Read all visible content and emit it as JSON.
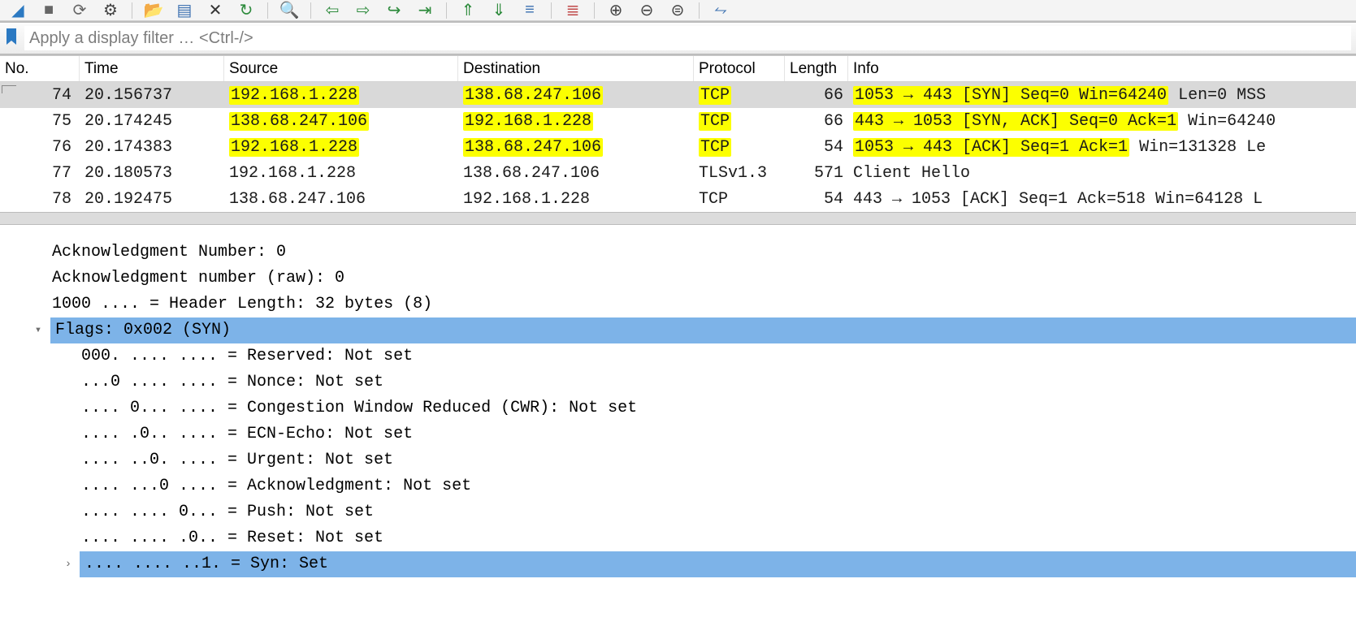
{
  "toolbar": {
    "buttons": [
      {
        "name": "shark-fin-icon",
        "glyph": "◢",
        "color": "#2b79c2"
      },
      {
        "name": "stop-icon",
        "glyph": "■",
        "color": "#666"
      },
      {
        "name": "restart-icon",
        "glyph": "⟳",
        "color": "#666"
      },
      {
        "name": "options-icon",
        "glyph": "⚙",
        "color": "#444"
      },
      {
        "name": "sep"
      },
      {
        "name": "open-icon",
        "glyph": "📂",
        "color": "#caa62a"
      },
      {
        "name": "save-icon",
        "glyph": "▤",
        "color": "#3a6fb0"
      },
      {
        "name": "close-icon",
        "glyph": "✕",
        "color": "#333"
      },
      {
        "name": "reload-icon",
        "glyph": "↻",
        "color": "#2e8b3d"
      },
      {
        "name": "sep"
      },
      {
        "name": "find-icon",
        "glyph": "🔍",
        "color": "#444"
      },
      {
        "name": "sep"
      },
      {
        "name": "back-icon",
        "glyph": "⇦",
        "color": "#2e8b3d"
      },
      {
        "name": "fwd-icon",
        "glyph": "⇨",
        "color": "#2e8b3d"
      },
      {
        "name": "jump-icon",
        "glyph": "↪",
        "color": "#2e8b3d"
      },
      {
        "name": "goto-last-icon",
        "glyph": "⇥",
        "color": "#2e8b3d"
      },
      {
        "name": "sep"
      },
      {
        "name": "first-icon",
        "glyph": "⇑",
        "color": "#2e8b3d"
      },
      {
        "name": "last-icon",
        "glyph": "⇓",
        "color": "#2e8b3d"
      },
      {
        "name": "auto-scroll-icon",
        "glyph": "≡",
        "color": "#3a6fb0"
      },
      {
        "name": "sep"
      },
      {
        "name": "colorize-icon",
        "glyph": "≣",
        "color": "#c04848"
      },
      {
        "name": "sep"
      },
      {
        "name": "zoom-in-icon",
        "glyph": "⊕",
        "color": "#444"
      },
      {
        "name": "zoom-out-icon",
        "glyph": "⊖",
        "color": "#444"
      },
      {
        "name": "zoom-reset-icon",
        "glyph": "⊜",
        "color": "#444"
      },
      {
        "name": "sep"
      },
      {
        "name": "resize-cols-icon",
        "glyph": "⥊",
        "color": "#3a6fb0"
      }
    ]
  },
  "filter": {
    "placeholder": "Apply a display filter … <Ctrl-/>"
  },
  "columns": [
    "No.",
    "Time",
    "Source",
    "Destination",
    "Protocol",
    "Length",
    "Info"
  ],
  "packets": [
    {
      "no": "74",
      "time": "20.156737",
      "src": "192.168.1.228",
      "dst": "138.68.247.106",
      "proto": "TCP",
      "len": "66",
      "info": "1053 → 443 [SYN] Seq=0 Win=64240 Len=0 MSS",
      "sel": true,
      "hl": {
        "src": true,
        "dst": true,
        "proto": true,
        "info_to": "k"
      }
    },
    {
      "no": "75",
      "time": "20.174245",
      "src": "138.68.247.106",
      "dst": "192.168.1.228",
      "proto": "TCP",
      "len": "66",
      "info": "443 → 1053 [SYN, ACK] Seq=0 Ack=1 Win=64240",
      "hl": {
        "src": true,
        "dst": true,
        "proto": true,
        "info_to": "S"
      }
    },
    {
      "no": "76",
      "time": "20.174383",
      "src": "192.168.1.228",
      "dst": "138.68.247.106",
      "proto": "TCP",
      "len": "54",
      "info": "1053 → 443 [ACK] Seq=1 Ack=1 Win=131328 Le",
      "hl": {
        "src": true,
        "dst": true,
        "proto": true,
        "info_to": "c"
      }
    },
    {
      "no": "77",
      "time": "20.180573",
      "src": "192.168.1.228",
      "dst": "138.68.247.106",
      "proto": "TLSv1.3",
      "len": "571",
      "info": "Client Hello"
    },
    {
      "no": "78",
      "time": "20.192475",
      "src": "138.68.247.106",
      "dst": "192.168.1.228",
      "proto": "TCP",
      "len": "54",
      "info": "443 → 1053 [ACK] Seq=1 Ack=518 Win=64128 L"
    }
  ],
  "detail": {
    "pre_lines": [
      "Acknowledgment Number: 0",
      "Acknowledgment number (raw): 0",
      "1000 .... = Header Length: 32 bytes (8)"
    ],
    "flags_header": "Flags: 0x002 (SYN)",
    "flag_lines": [
      "000. .... .... = Reserved: Not set",
      "...0 .... .... = Nonce: Not set",
      ".... 0... .... = Congestion Window Reduced (CWR): Not set",
      ".... .0.. .... = ECN-Echo: Not set",
      ".... ..0. .... = Urgent: Not set",
      ".... ...0 .... = Acknowledgment: Not set",
      ".... .... 0... = Push: Not set",
      ".... .... .0.. = Reset: Not set"
    ],
    "syn_line": ".... .... ..1. = Syn: Set"
  },
  "colors": {
    "highlight": "#fcff00",
    "selection_row": "#d9d9d9",
    "tree_selection": "#7db3e8"
  }
}
